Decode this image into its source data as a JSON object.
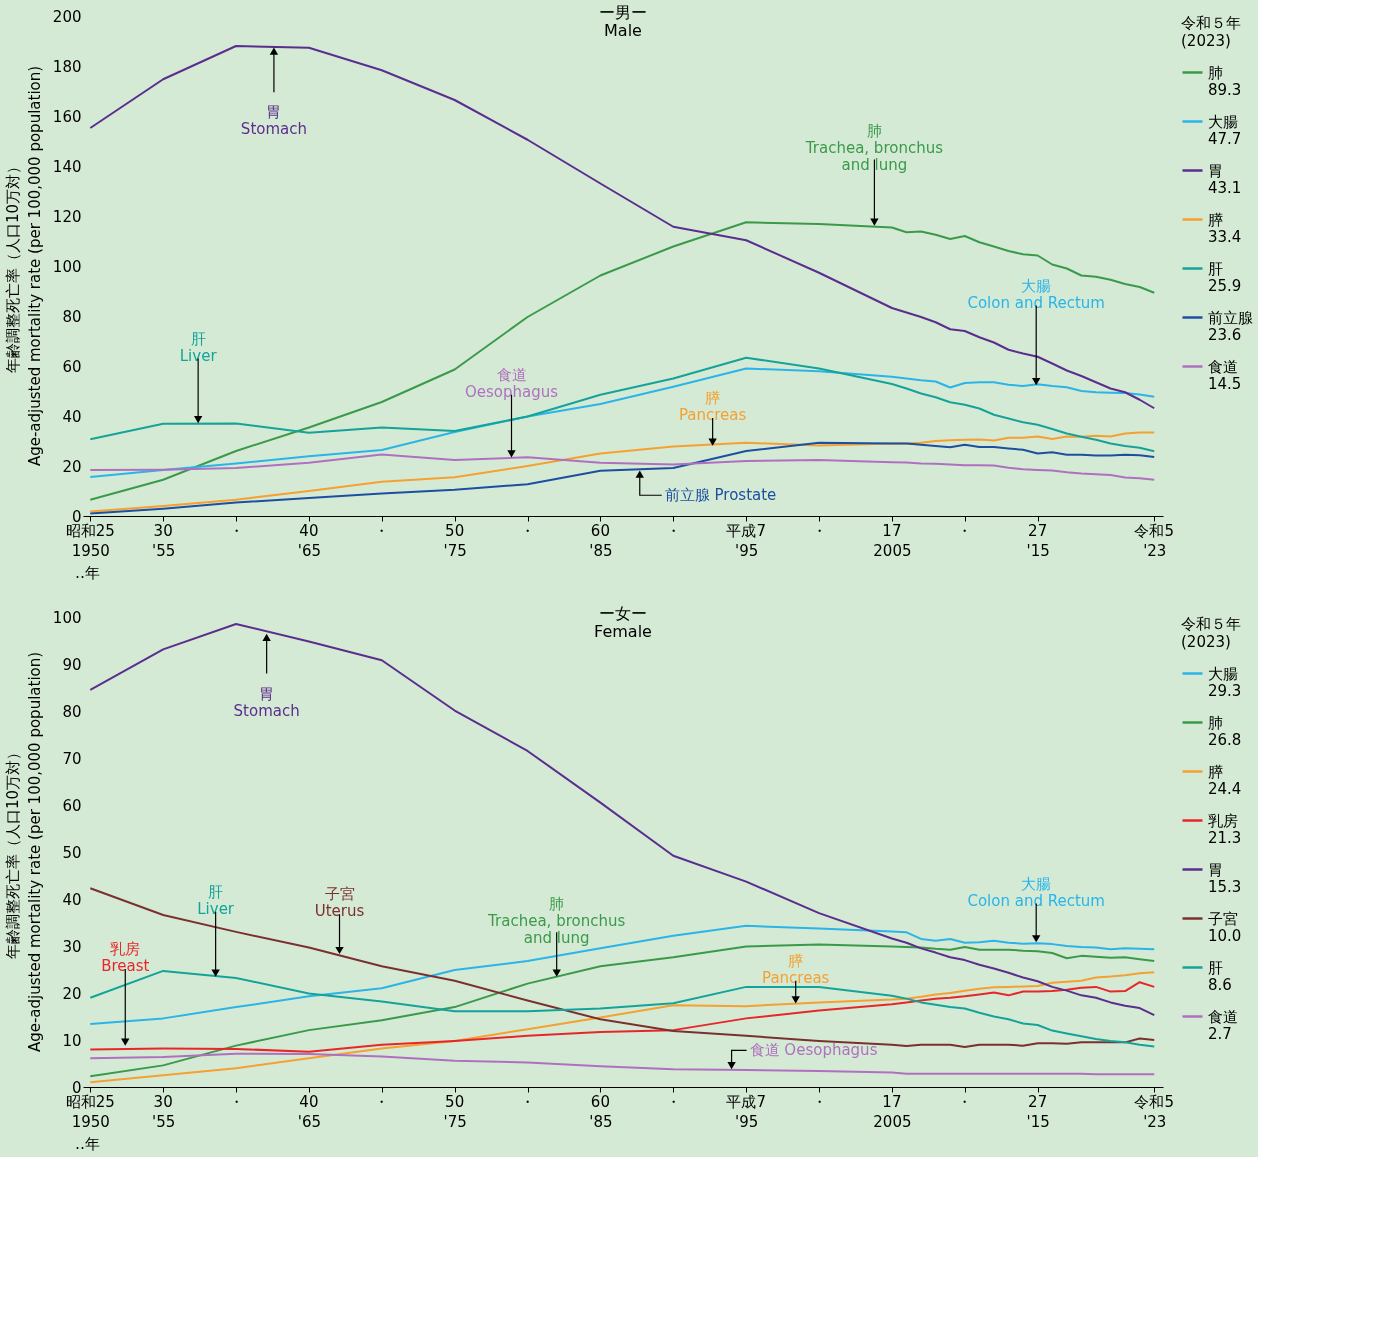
{
  "chart_data": [
    {
      "type": "line",
      "title": "ー男ー\nMale",
      "ylabel": "年齢調整死亡率（人口10万対）\nAge-adjusted mortality rate (per 100,000 population)",
      "xlabel": "‥年",
      "legend_title": "令和５年\n(2023)",
      "legend": "right",
      "grid": false,
      "x": [
        1950,
        1955,
        1960,
        1965,
        1970,
        1975,
        1980,
        1985,
        1990,
        1995,
        2000,
        2005,
        2006,
        2007,
        2008,
        2009,
        2010,
        2011,
        2012,
        2013,
        2014,
        2015,
        2016,
        2017,
        2018,
        2019,
        2020,
        2021,
        2022,
        2023
      ],
      "xlim": [
        1949.5,
        2023.6
      ],
      "xticks": [
        1950,
        {
          "value": 1955,
          "label": "'55"
        },
        {
          "value": 1960,
          "label": null
        },
        {
          "value": 1965,
          "label": "'65"
        },
        {
          "value": 1970,
          "label": null
        },
        {
          "value": 1975,
          "label": "'75"
        },
        {
          "value": 1980,
          "label": null
        },
        {
          "value": 1985,
          "label": "'85"
        },
        {
          "value": 1990,
          "label": null
        },
        {
          "value": 1995,
          "label": "'95"
        },
        {
          "value": 2000,
          "label": null
        },
        2005,
        {
          "value": 2010,
          "label": null
        },
        {
          "value": 2015,
          "label": "'15"
        },
        {
          "value": 2023,
          "label": "'23"
        }
      ],
      "ylim": [
        0,
        200
      ],
      "yticks": [
        0,
        20,
        40,
        60,
        80,
        100,
        120,
        140,
        160,
        180,
        200
      ],
      "series": [
        {
          "name": "肺\n89.3",
          "color": "#3a9a4a",
          "values": [
            6.5,
            14.5,
            26,
            35.4,
            45.6,
            58.6,
            79.6,
            96.2,
            107.8,
            117.5,
            116.8,
            115.4,
            113.5,
            113.8,
            112.5,
            110.8,
            112,
            109.5,
            107.8,
            106,
            104.7,
            104.2,
            100.6,
            99,
            96.2,
            95.7,
            94.5,
            92.8,
            91.6,
            89.3
          ]
        },
        {
          "name": "大腸\n47.7",
          "color": "#2ab4e8",
          "values": [
            15.6,
            18.4,
            21,
            23.9,
            26.4,
            33.6,
            39.8,
            44.8,
            51.7,
            59,
            57.9,
            55.7,
            55,
            54.3,
            53.8,
            51.4,
            53.2,
            53.5,
            53.5,
            52.5,
            52,
            52.7,
            52,
            51.5,
            50,
            49.5,
            49.3,
            49.2,
            48.6,
            47.7
          ]
        },
        {
          "name": "胃\n43.1",
          "color": "#5b2d8e",
          "values": [
            155.2,
            174.7,
            188,
            187.3,
            178.3,
            166.4,
            150.5,
            133,
            115.7,
            110.3,
            97.3,
            83.2,
            81.4,
            79.6,
            77.5,
            74.7,
            74,
            71.5,
            69.4,
            66.5,
            65,
            63.7,
            61,
            58.2,
            56,
            53.5,
            51,
            49.5,
            46.5,
            43.1
          ]
        },
        {
          "name": "膵\n33.4",
          "color": "#f5a030",
          "values": [
            1.8,
            4,
            6.5,
            10,
            13.7,
            15.5,
            20,
            25,
            27.8,
            29.3,
            28.2,
            29,
            29,
            29.3,
            30,
            30.3,
            30.5,
            30.6,
            30.2,
            31.3,
            31.3,
            31.8,
            30.8,
            31.8,
            31.7,
            32.1,
            31.8,
            33,
            33.4,
            33.4
          ]
        },
        {
          "name": "肝\n25.9",
          "color": "#14a39a",
          "values": [
            30.7,
            36.9,
            37,
            33.3,
            35.4,
            34,
            39.8,
            48.5,
            55,
            63.3,
            59,
            52.8,
            51,
            49,
            47.5,
            45.5,
            44.5,
            43,
            40.5,
            39,
            37.5,
            36.5,
            34.8,
            33,
            31.7,
            30.5,
            29,
            28,
            27.3,
            25.9
          ]
        },
        {
          "name": "前立腺\n23.6",
          "color": "#1d4fa0",
          "values": [
            1,
            2.9,
            5.4,
            7.2,
            9,
            10.5,
            12.7,
            18.1,
            19.2,
            26,
            29.3,
            29,
            29,
            28.5,
            28,
            27.5,
            28.5,
            27.6,
            27.6,
            27,
            26.5,
            25,
            25.5,
            24.5,
            24.5,
            24.2,
            24.2,
            24.5,
            24.3,
            23.6
          ]
        },
        {
          "name": "食道\n14.5",
          "color": "#b070c0",
          "values": [
            18.4,
            18.5,
            19.2,
            21.3,
            24.6,
            22.4,
            23.5,
            21.3,
            20.6,
            22,
            22.4,
            21.5,
            21.4,
            21,
            20.9,
            20.6,
            20.3,
            20.3,
            20.2,
            19.3,
            18.7,
            18.4,
            18.2,
            17.5,
            17,
            16.7,
            16.4,
            15.4,
            15.1,
            14.5
          ]
        }
      ],
      "annotations": [
        {
          "text": "胃\nStomach",
          "x": 1962.6,
          "y": 185.5
        },
        {
          "text": "肺\nTrachea, bronchus\nand lung",
          "x": 2003.8,
          "y": 118
        },
        {
          "text": "肝\nLiver",
          "x": 1957.4,
          "y": 39
        },
        {
          "text": "食道\nOesophagus",
          "x": 1978.9,
          "y": 25.3
        },
        {
          "text": "膵\nPancreas",
          "x": 1992.7,
          "y": 30
        },
        {
          "text": "前立腺 Prostate",
          "x": 1987.7,
          "y": 16.3
        },
        {
          "text": "大腸\nColon and Rectum",
          "x": 2014.9,
          "y": 54.2
        },
        "昭和25",
        "30",
        "・",
        "40",
        "・",
        "50",
        "・",
        "60",
        "・",
        "平成7",
        "・",
        "17",
        "・",
        "27",
        "令和5"
      ]
    },
    {
      "type": "line",
      "title": "ー女ー\nFemale",
      "ylabel": "年齢調整死亡率（人口10万対）\nAge-adjusted mortality rate (per 100,000 population)",
      "xlabel": "‥年",
      "legend_title": "令和５年\n(2023)",
      "legend": "right",
      "grid": false,
      "x": [
        1950,
        1955,
        1960,
        1965,
        1970,
        1975,
        1980,
        1985,
        1990,
        1995,
        2000,
        2005,
        2006,
        2007,
        2008,
        2009,
        2010,
        2011,
        2012,
        2013,
        2014,
        2015,
        2016,
        2017,
        2018,
        2019,
        2020,
        2021,
        2022,
        2023
      ],
      "xlim": [
        1949.5,
        2023.6
      ],
      "xticks": [
        1950,
        {
          "value": 1955,
          "label": "'55"
        },
        {
          "value": 1960,
          "label": null
        },
        {
          "value": 1965,
          "label": "'65"
        },
        {
          "value": 1970,
          "label": null
        },
        {
          "value": 1975,
          "label": "'75"
        },
        {
          "value": 1980,
          "label": null
        },
        {
          "value": 1985,
          "label": "'85"
        },
        {
          "value": 1990,
          "label": null
        },
        {
          "value": 1995,
          "label": "'95"
        },
        {
          "value": 2000,
          "label": null
        },
        2005,
        {
          "value": 2010,
          "label": null
        },
        {
          "value": 2015,
          "label": "'15"
        },
        {
          "value": 2023,
          "label": "'23"
        }
      ],
      "ylim": [
        0,
        100
      ],
      "yticks": [
        0,
        10,
        20,
        30,
        40,
        50,
        60,
        70,
        80,
        90,
        100
      ],
      "series": [
        {
          "name": "大腸\n29.3",
          "color": "#2ab4e8",
          "values": [
            13.4,
            14.6,
            17,
            19.3,
            21,
            24.9,
            26.8,
            29.5,
            32.2,
            34.3,
            33.7,
            33.1,
            32.9,
            31.5,
            31.1,
            31.5,
            30.7,
            30.8,
            31.1,
            30.7,
            30.5,
            30.6,
            30.4,
            30,
            29.8,
            29.7,
            29.3,
            29.5,
            29.4,
            29.3
          ]
        },
        {
          "name": "肺\n26.8",
          "color": "#3a9a4a",
          "values": [
            2.3,
            4.6,
            8.8,
            12.1,
            14.2,
            17,
            22,
            25.7,
            27.6,
            29.9,
            30.3,
            29.9,
            29.8,
            29.7,
            29.4,
            29.2,
            29.8,
            29.2,
            29.2,
            29.2,
            29,
            28.9,
            28.5,
            27.4,
            27.9,
            27.7,
            27.5,
            27.6,
            27.2,
            26.8
          ]
        },
        {
          "name": "膵\n24.4",
          "color": "#f5a030",
          "values": [
            1,
            2.5,
            4,
            6.1,
            8.2,
            9.8,
            12.3,
            14.8,
            17.4,
            17.2,
            18,
            18.6,
            18.8,
            19.2,
            19.7,
            20,
            20.5,
            20.9,
            21.2,
            21.3,
            21.4,
            21.5,
            22.2,
            22.4,
            22.6,
            23.3,
            23.5,
            23.8,
            24.2,
            24.4
          ]
        },
        {
          "name": "乳房\n21.3",
          "color": "#e8262a",
          "values": [
            8,
            8.2,
            8.1,
            7.5,
            9,
            9.8,
            10.9,
            11.7,
            12.1,
            14.6,
            16.3,
            17.6,
            18,
            18.4,
            18.8,
            19,
            19.3,
            19.7,
            20.1,
            19.5,
            20.3,
            20.3,
            20.4,
            20.7,
            21.1,
            21.3,
            20.3,
            20.4,
            22.3,
            21.3
          ]
        },
        {
          "name": "胃\n15.3",
          "color": "#5b2d8e",
          "values": [
            84.5,
            93.1,
            98.5,
            94.8,
            90.8,
            80.1,
            71.5,
            60.5,
            49.2,
            43.7,
            37,
            31.6,
            30.7,
            29.5,
            28.6,
            27.6,
            27,
            26,
            25.2,
            24.3,
            23.3,
            22.5,
            21.3,
            20.5,
            19.5,
            19,
            18,
            17.3,
            16.8,
            15.3
          ]
        },
        {
          "name": "子宮\n10.0",
          "color": "#7b3030",
          "values": [
            42.3,
            36.6,
            33,
            29.7,
            25.7,
            22.6,
            18.4,
            14.4,
            11.9,
            10.9,
            9.8,
            9,
            8.7,
            9,
            9,
            9,
            8.5,
            9,
            9,
            9,
            8.8,
            9.3,
            9.3,
            9.2,
            9.5,
            9.5,
            9.5,
            9.5,
            10.3,
            10.0
          ]
        },
        {
          "name": "肝\n8.6",
          "color": "#14a39a",
          "values": [
            19,
            24.7,
            23.2,
            19.9,
            18.2,
            16.1,
            16.1,
            16.7,
            17.8,
            21.3,
            21.3,
            19.4,
            18.8,
            18,
            17.5,
            17,
            16.7,
            15.8,
            15,
            14.4,
            13.5,
            13.2,
            12,
            11.4,
            10.8,
            10.2,
            9.8,
            9.5,
            9,
            8.6
          ]
        },
        {
          "name": "食道\n2.7",
          "color": "#b070c0",
          "values": [
            6.1,
            6.4,
            7.1,
            7,
            6.5,
            5.6,
            5.2,
            4.4,
            3.8,
            3.6,
            3.4,
            3.1,
            2.8,
            2.8,
            2.8,
            2.8,
            2.8,
            2.8,
            2.8,
            2.8,
            2.8,
            2.8,
            2.8,
            2.8,
            2.8,
            2.7,
            2.7,
            2.7,
            2.7,
            2.7
          ]
        }
      ],
      "annotations": [
        {
          "text": "胃\nStomach",
          "x": 1962.1,
          "y": 95.4
        },
        {
          "text": "乳房\nBreast",
          "x": 1952.4,
          "y": 9.8
        },
        {
          "text": "肝\nLiver",
          "x": 1958.6,
          "y": 24.5
        },
        {
          "text": "子宮\nUterus",
          "x": 1967.1,
          "y": 29.3
        },
        {
          "text": "肺\nTrachea, bronchus\nand lung",
          "x": 1982,
          "y": 24.5
        },
        {
          "text": "膵\nPancreas",
          "x": 1998.4,
          "y": 18.8
        },
        {
          "text": "食道 Oesophagus",
          "x": 1994,
          "y": 4.8
        },
        {
          "text": "大腸\nColon and Rectum",
          "x": 2014.9,
          "y": 31.8
        },
        "昭和25",
        "30",
        "・",
        "40",
        "・",
        "50",
        "・",
        "60",
        "・",
        "平成7",
        "・",
        "17",
        "・",
        "27",
        "令和5"
      ]
    }
  ]
}
